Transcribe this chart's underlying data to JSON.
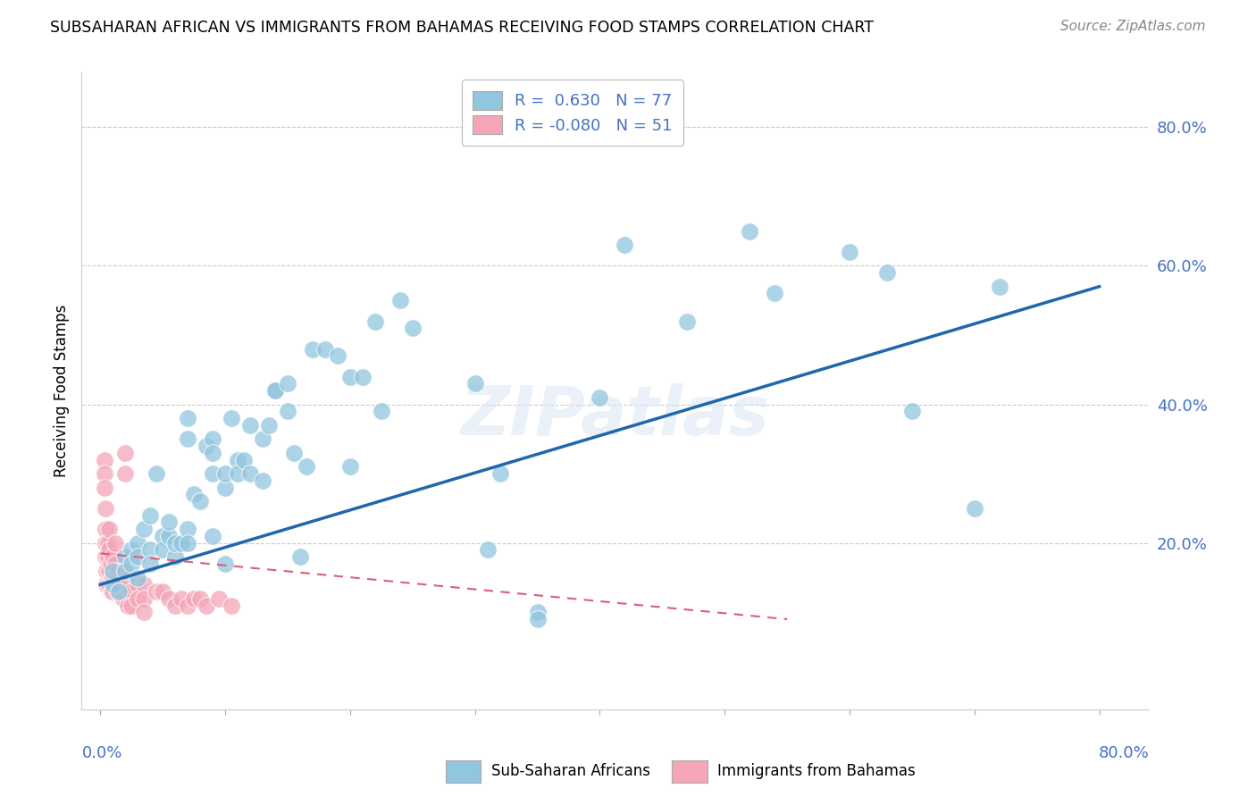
{
  "title": "SUBSAHARAN AFRICAN VS IMMIGRANTS FROM BAHAMAS RECEIVING FOOD STAMPS CORRELATION CHART",
  "source": "Source: ZipAtlas.com",
  "ylabel": "Receiving Food Stamps",
  "watermark": "ZIPatlas",
  "blue_color": "#92c5de",
  "pink_color": "#f4a6b8",
  "blue_line_color": "#2166ac",
  "pink_line_color": "#d6607a",
  "blue_scatter": [
    [
      1.0,
      14
    ],
    [
      1.0,
      16
    ],
    [
      1.5,
      13
    ],
    [
      2.0,
      18
    ],
    [
      2.0,
      16
    ],
    [
      2.5,
      19
    ],
    [
      2.5,
      17
    ],
    [
      3.0,
      20
    ],
    [
      3.0,
      18
    ],
    [
      3.0,
      15
    ],
    [
      3.5,
      22
    ],
    [
      4.0,
      19
    ],
    [
      4.0,
      17
    ],
    [
      4.0,
      24
    ],
    [
      4.5,
      30
    ],
    [
      5.0,
      21
    ],
    [
      5.0,
      19
    ],
    [
      5.5,
      21
    ],
    [
      5.5,
      23
    ],
    [
      6.0,
      18
    ],
    [
      6.0,
      20
    ],
    [
      6.5,
      20
    ],
    [
      7.0,
      38
    ],
    [
      7.0,
      35
    ],
    [
      7.0,
      22
    ],
    [
      7.0,
      20
    ],
    [
      7.5,
      27
    ],
    [
      8.0,
      26
    ],
    [
      8.5,
      34
    ],
    [
      9.0,
      35
    ],
    [
      9.0,
      33
    ],
    [
      9.0,
      30
    ],
    [
      9.0,
      21
    ],
    [
      10.0,
      28
    ],
    [
      10.0,
      30
    ],
    [
      10.0,
      17
    ],
    [
      10.5,
      38
    ],
    [
      11.0,
      32
    ],
    [
      11.0,
      30
    ],
    [
      11.5,
      32
    ],
    [
      12.0,
      37
    ],
    [
      12.0,
      30
    ],
    [
      13.0,
      35
    ],
    [
      13.0,
      29
    ],
    [
      13.5,
      37
    ],
    [
      14.0,
      42
    ],
    [
      14.0,
      42
    ],
    [
      15.0,
      43
    ],
    [
      15.0,
      39
    ],
    [
      15.5,
      33
    ],
    [
      16.0,
      18
    ],
    [
      16.5,
      31
    ],
    [
      17.0,
      48
    ],
    [
      18.0,
      48
    ],
    [
      19.0,
      47
    ],
    [
      20.0,
      44
    ],
    [
      20.0,
      31
    ],
    [
      21.0,
      44
    ],
    [
      22.0,
      52
    ],
    [
      22.5,
      39
    ],
    [
      24.0,
      55
    ],
    [
      25.0,
      51
    ],
    [
      30.0,
      43
    ],
    [
      31.0,
      19
    ],
    [
      32.0,
      30
    ],
    [
      35.0,
      10
    ],
    [
      35.0,
      9
    ],
    [
      40.0,
      41
    ],
    [
      42.0,
      63
    ],
    [
      47.0,
      52
    ],
    [
      52.0,
      65
    ],
    [
      54.0,
      56
    ],
    [
      60.0,
      62
    ],
    [
      63.0,
      59
    ],
    [
      65.0,
      39
    ],
    [
      70.0,
      25
    ],
    [
      72.0,
      57
    ]
  ],
  "pink_scatter": [
    [
      0.3,
      32
    ],
    [
      0.3,
      30
    ],
    [
      0.3,
      28
    ],
    [
      0.4,
      25
    ],
    [
      0.4,
      22
    ],
    [
      0.4,
      20
    ],
    [
      0.4,
      18
    ],
    [
      0.5,
      16
    ],
    [
      0.5,
      14
    ],
    [
      0.6,
      20
    ],
    [
      0.6,
      18
    ],
    [
      0.7,
      22
    ],
    [
      0.7,
      19
    ],
    [
      0.7,
      16
    ],
    [
      0.7,
      14
    ],
    [
      0.8,
      17
    ],
    [
      0.9,
      15
    ],
    [
      0.9,
      13
    ],
    [
      1.0,
      18
    ],
    [
      1.0,
      15
    ],
    [
      1.0,
      13
    ],
    [
      1.2,
      20
    ],
    [
      1.2,
      17
    ],
    [
      1.2,
      14
    ],
    [
      1.3,
      13
    ],
    [
      1.4,
      16
    ],
    [
      1.5,
      14
    ],
    [
      1.8,
      16
    ],
    [
      1.8,
      12
    ],
    [
      2.0,
      33
    ],
    [
      2.0,
      30
    ],
    [
      2.2,
      14
    ],
    [
      2.2,
      11
    ],
    [
      2.5,
      13
    ],
    [
      2.5,
      11
    ],
    [
      3.0,
      14
    ],
    [
      3.0,
      12
    ],
    [
      3.5,
      14
    ],
    [
      3.5,
      12
    ],
    [
      3.5,
      10
    ],
    [
      4.5,
      13
    ],
    [
      5.0,
      13
    ],
    [
      5.5,
      12
    ],
    [
      6.0,
      11
    ],
    [
      6.5,
      12
    ],
    [
      7.0,
      11
    ],
    [
      7.5,
      12
    ],
    [
      8.0,
      12
    ],
    [
      8.5,
      11
    ],
    [
      9.5,
      12
    ],
    [
      10.5,
      11
    ]
  ],
  "xlim": [
    -1.5,
    84
  ],
  "ylim": [
    -4,
    88
  ],
  "xtick_positions": [
    0,
    10,
    20,
    30,
    40,
    50,
    60,
    70,
    80
  ],
  "ytick_positions": [
    0,
    20,
    40,
    60,
    80
  ],
  "blue_trend_x": [
    0,
    80
  ],
  "blue_trend_y": [
    14,
    57
  ],
  "pink_trend_x": [
    0,
    55
  ],
  "pink_trend_y": [
    18.5,
    9
  ]
}
